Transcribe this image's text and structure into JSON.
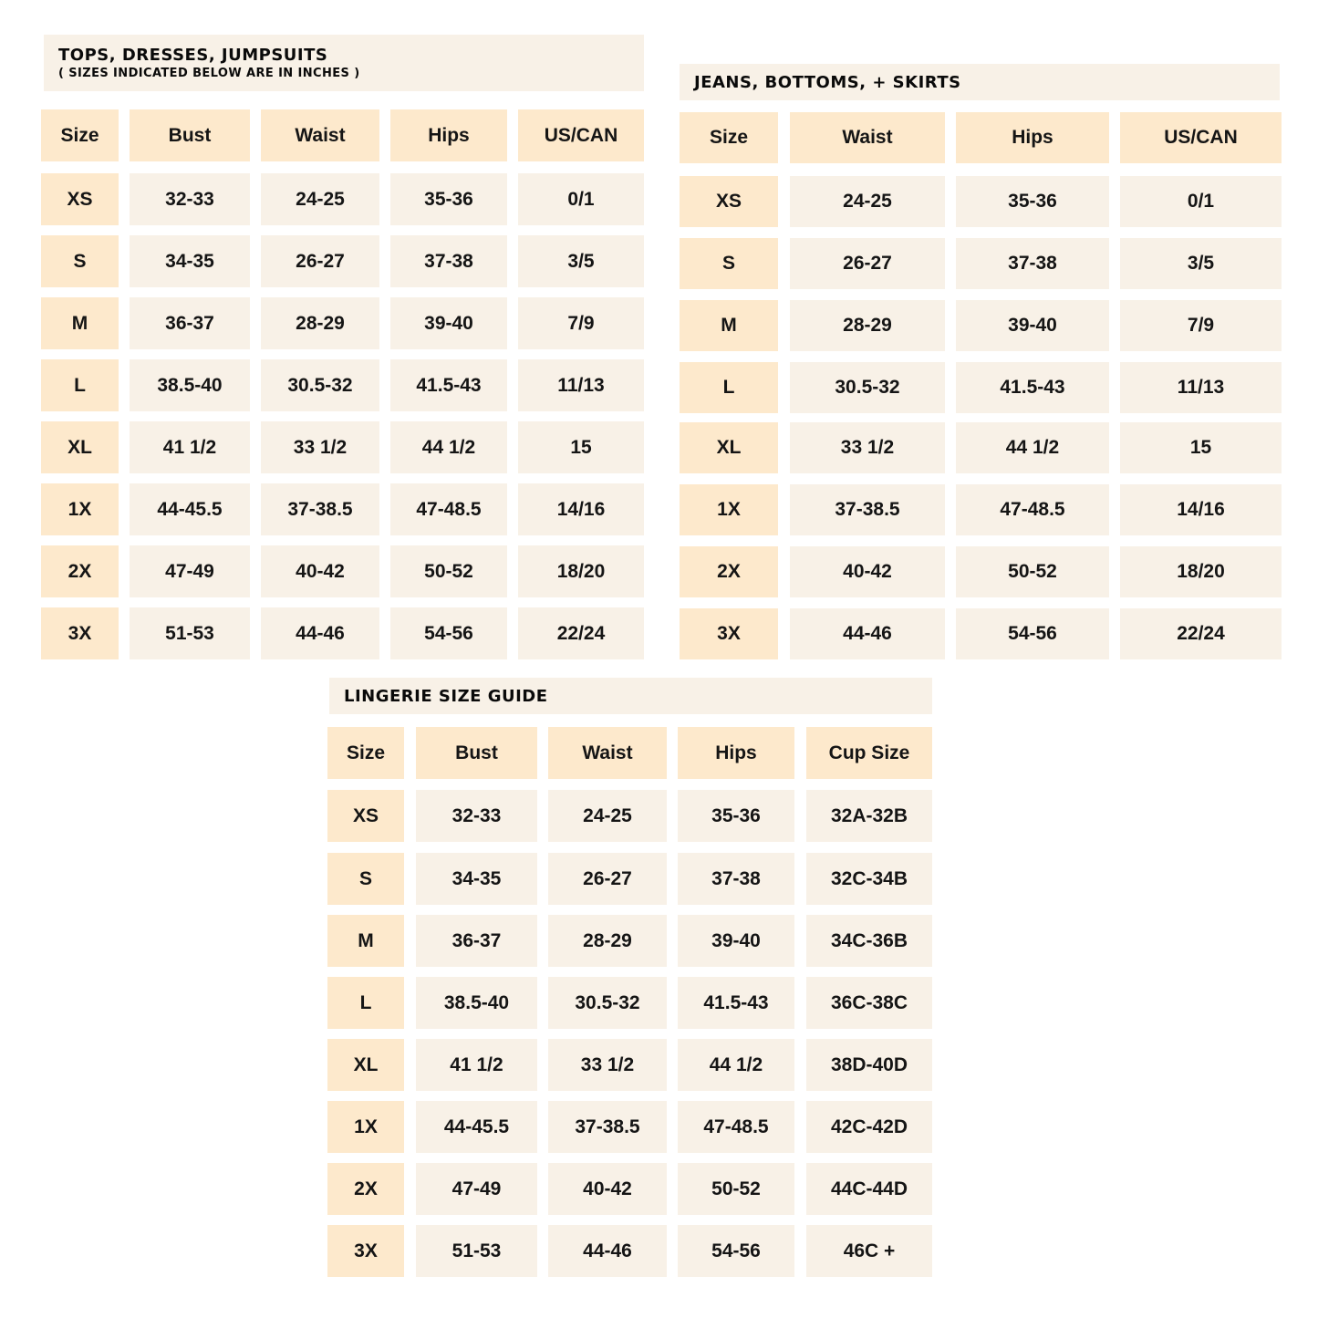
{
  "colors": {
    "header_bg": "#fde9cc",
    "cell_bg": "#f8f1e7",
    "title_bg": "#f8f1e7",
    "text": "#151515"
  },
  "tables": [
    {
      "title": "TOPS, DRESSES, JUMPSUITS",
      "subtitle": "( SIZES INDICATED BELOW ARE IN INCHES )",
      "columns": [
        "Size",
        "Bust",
        "Waist",
        "Hips",
        "US/CAN"
      ],
      "rows": [
        [
          "XS",
          "32-33",
          "24-25",
          "35-36",
          "0/1"
        ],
        [
          "S",
          "34-35",
          "26-27",
          "37-38",
          "3/5"
        ],
        [
          "M",
          "36-37",
          "28-29",
          "39-40",
          "7/9"
        ],
        [
          "L",
          "38.5-40",
          "30.5-32",
          "41.5-43",
          "11/13"
        ],
        [
          "XL",
          "41 1/2",
          "33 1/2",
          "44 1/2",
          "15"
        ],
        [
          "1X",
          "44-45.5",
          "37-38.5",
          "47-48.5",
          "14/16"
        ],
        [
          "2X",
          "47-49",
          "40-42",
          "50-52",
          "18/20"
        ],
        [
          "3X",
          "51-53",
          "44-46",
          "54-56",
          "22/24"
        ]
      ]
    },
    {
      "title": "JEANS, BOTTOMS, + SKIRTS",
      "columns": [
        "Size",
        "Waist",
        "Hips",
        "US/CAN"
      ],
      "rows": [
        [
          "XS",
          "24-25",
          "35-36",
          "0/1"
        ],
        [
          "S",
          "26-27",
          "37-38",
          "3/5"
        ],
        [
          "M",
          "28-29",
          "39-40",
          "7/9"
        ],
        [
          "L",
          "30.5-32",
          "41.5-43",
          "11/13"
        ],
        [
          "XL",
          "33 1/2",
          "44 1/2",
          "15"
        ],
        [
          "1X",
          "37-38.5",
          "47-48.5",
          "14/16"
        ],
        [
          "2X",
          "40-42",
          "50-52",
          "18/20"
        ],
        [
          "3X",
          "44-46",
          "54-56",
          "22/24"
        ]
      ]
    },
    {
      "title": "LINGERIE SIZE GUIDE",
      "columns": [
        "Size",
        "Bust",
        "Waist",
        "Hips",
        "Cup Size"
      ],
      "rows": [
        [
          "XS",
          "32-33",
          "24-25",
          "35-36",
          "32A-32B"
        ],
        [
          "S",
          "34-35",
          "26-27",
          "37-38",
          "32C-34B"
        ],
        [
          "M",
          "36-37",
          "28-29",
          "39-40",
          "34C-36B"
        ],
        [
          "L",
          "38.5-40",
          "30.5-32",
          "41.5-43",
          "36C-38C"
        ],
        [
          "XL",
          "41 1/2",
          "33 1/2",
          "44 1/2",
          "38D-40D"
        ],
        [
          "1X",
          "44-45.5",
          "37-38.5",
          "47-48.5",
          "42C-42D"
        ],
        [
          "2X",
          "47-49",
          "40-42",
          "50-52",
          "44C-44D"
        ],
        [
          "3X",
          "51-53",
          "44-46",
          "54-56",
          "46C +"
        ]
      ]
    }
  ]
}
